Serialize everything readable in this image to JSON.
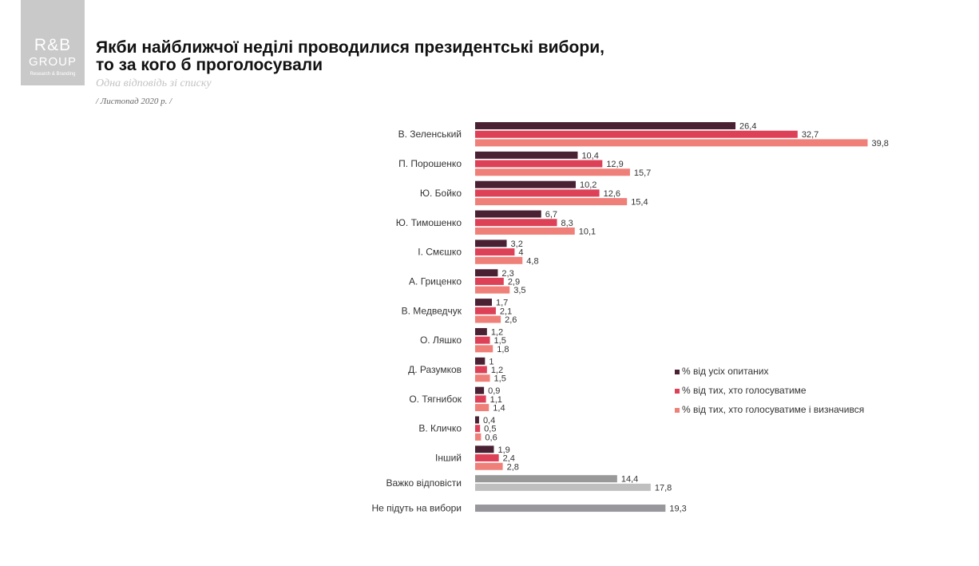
{
  "logo": {
    "line1": "R&B",
    "line2": "GROUP",
    "line3": "Research & Branding"
  },
  "title_line1": "Якби найближчої неділі проводилися президентські вибори,",
  "title_line2": "то за кого б проголосували",
  "subtitle": "Одна відповідь зі списку",
  "period": "/ Листопад 2020 р. /",
  "colors": {
    "all": "#4a2033",
    "voters": "#dd4157",
    "decided": "#ef8079",
    "hard_dark": "#999999",
    "hard_light": "#bfbfbf",
    "none": "#97979c"
  },
  "chart_data": {
    "type": "bar",
    "orientation": "horizontal",
    "categories": [
      "В. Зеленський",
      "П. Порошенко",
      "Ю. Бойко",
      "Ю. Тимошенко",
      "І. Смєшко",
      "А. Гриценко",
      "В. Медведчук",
      "О. Ляшко",
      "Д. Разумков",
      "О. Тягнибок",
      "В. Кличко",
      "Інший",
      "Важко відповісти",
      "Не підуть на вибори"
    ],
    "series": [
      {
        "name": "% від усіх опитаних",
        "values": [
          26.4,
          10.4,
          10.2,
          6.7,
          3.2,
          2.3,
          1.7,
          1.2,
          1,
          0.9,
          0.4,
          1.9,
          14.4,
          19.3
        ]
      },
      {
        "name": "% від тих,  хто голосуватиме",
        "values": [
          32.7,
          12.9,
          12.6,
          8.3,
          4,
          2.9,
          2.1,
          1.5,
          1.2,
          1.1,
          0.5,
          2.4,
          17.8,
          null
        ]
      },
      {
        "name": "% від тих,  хто голосуватиме  і визначився",
        "values": [
          39.8,
          15.7,
          15.4,
          10.1,
          4.8,
          3.5,
          2.6,
          1.8,
          1.5,
          1.4,
          0.6,
          2.8,
          null,
          null
        ]
      }
    ],
    "labels": [
      [
        "26,4",
        "32,7",
        "39,8"
      ],
      [
        "10,4",
        "12,9",
        "15,7"
      ],
      [
        "10,2",
        "12,6",
        "15,4"
      ],
      [
        "6,7",
        "8,3",
        "10,1"
      ],
      [
        "3,2",
        "4",
        "4,8"
      ],
      [
        "2,3",
        "2,9",
        "3,5"
      ],
      [
        "1,7",
        "2,1",
        "2,6"
      ],
      [
        "1,2",
        "1,5",
        "1,8"
      ],
      [
        "1",
        "1,2",
        "1,5"
      ],
      [
        "0,9",
        "1,1",
        "1,4"
      ],
      [
        "0,4",
        "0,5",
        "0,6"
      ],
      [
        "1,9",
        "2,4",
        "2,8"
      ],
      [
        "14,4",
        "17,8"
      ],
      [
        "19,3"
      ]
    ],
    "xlim": [
      0,
      40
    ],
    "grid": false,
    "legend_position": "right"
  }
}
